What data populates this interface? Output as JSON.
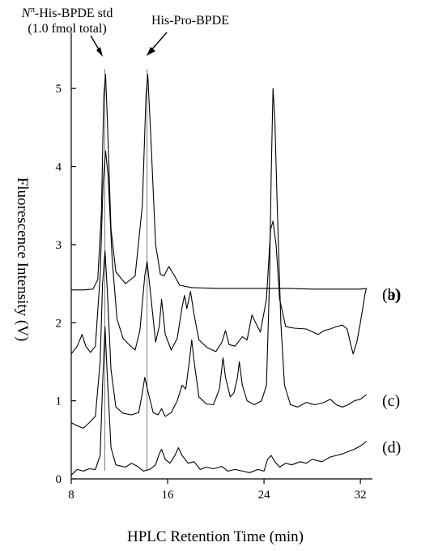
{
  "chart_data": {
    "type": "line",
    "xlabel": "HPLC Retention Time (min)",
    "ylabel": "Fluorescence Intensity (V)",
    "xlim": [
      8,
      33
    ],
    "ylim": [
      0,
      5.5
    ],
    "x_ticks": [
      "8",
      "16",
      "24",
      "32"
    ],
    "y_ticks": [
      "0",
      "1",
      "2",
      "3",
      "4",
      "5"
    ],
    "annotations": [
      {
        "line1_italic": "N",
        "line1_sup": "π",
        "line1_rest": "-His-BPDE std",
        "line2": "(1.0 fmol total)",
        "x": 10.8
      },
      {
        "text": "His-Pro-BPDE",
        "x": 14.3
      }
    ],
    "series": [
      {
        "name": "(a)",
        "points": [
          [
            8.0,
            2.42
          ],
          [
            9.0,
            2.42
          ],
          [
            9.8,
            2.43
          ],
          [
            10.2,
            2.55
          ],
          [
            10.5,
            3.4
          ],
          [
            10.7,
            4.9
          ],
          [
            10.85,
            5.18
          ],
          [
            11.0,
            4.6
          ],
          [
            11.3,
            3.2
          ],
          [
            11.7,
            2.65
          ],
          [
            12.5,
            2.5
          ],
          [
            13.3,
            2.6
          ],
          [
            13.9,
            3.5
          ],
          [
            14.2,
            4.9
          ],
          [
            14.35,
            5.18
          ],
          [
            14.6,
            4.4
          ],
          [
            15.0,
            3.0
          ],
          [
            15.4,
            2.62
          ],
          [
            15.7,
            2.6
          ],
          [
            16.1,
            2.72
          ],
          [
            16.5,
            2.62
          ],
          [
            17.0,
            2.48
          ],
          [
            18.0,
            2.45
          ],
          [
            20.0,
            2.44
          ],
          [
            22.0,
            2.44
          ],
          [
            24.0,
            2.44
          ],
          [
            26.0,
            2.44
          ],
          [
            28.0,
            2.43
          ],
          [
            30.0,
            2.43
          ],
          [
            32.0,
            2.43
          ],
          [
            32.5,
            2.44
          ]
        ]
      },
      {
        "name": "(b)",
        "points": [
          [
            8.0,
            1.6
          ],
          [
            8.5,
            1.7
          ],
          [
            8.9,
            1.85
          ],
          [
            9.2,
            1.7
          ],
          [
            9.6,
            1.62
          ],
          [
            10.0,
            1.7
          ],
          [
            10.4,
            2.6
          ],
          [
            10.65,
            3.8
          ],
          [
            10.85,
            4.2
          ],
          [
            11.05,
            3.9
          ],
          [
            11.4,
            2.8
          ],
          [
            11.8,
            2.05
          ],
          [
            12.3,
            1.8
          ],
          [
            12.8,
            1.72
          ],
          [
            13.3,
            1.65
          ],
          [
            13.7,
            1.9
          ],
          [
            14.1,
            2.6
          ],
          [
            14.3,
            2.78
          ],
          [
            14.6,
            2.35
          ],
          [
            15.0,
            1.75
          ],
          [
            15.3,
            1.95
          ],
          [
            15.5,
            2.3
          ],
          [
            15.8,
            1.85
          ],
          [
            16.3,
            1.65
          ],
          [
            16.8,
            1.8
          ],
          [
            17.2,
            2.2
          ],
          [
            17.4,
            2.35
          ],
          [
            17.6,
            2.18
          ],
          [
            17.9,
            2.4
          ],
          [
            18.2,
            2.1
          ],
          [
            18.6,
            1.78
          ],
          [
            19.3,
            1.68
          ],
          [
            20.0,
            1.63
          ],
          [
            20.5,
            1.75
          ],
          [
            20.8,
            1.9
          ],
          [
            21.1,
            1.72
          ],
          [
            21.6,
            1.7
          ],
          [
            22.2,
            1.82
          ],
          [
            22.6,
            1.78
          ],
          [
            23.0,
            2.1
          ],
          [
            23.3,
            2.0
          ],
          [
            23.7,
            1.88
          ],
          [
            24.2,
            2.3
          ],
          [
            24.55,
            3.2
          ],
          [
            24.75,
            3.3
          ],
          [
            25.0,
            3.0
          ],
          [
            25.3,
            2.3
          ],
          [
            25.8,
            1.95
          ],
          [
            26.5,
            1.93
          ],
          [
            27.5,
            1.92
          ],
          [
            28.5,
            1.85
          ],
          [
            29.0,
            1.9
          ],
          [
            29.5,
            1.92
          ],
          [
            30.0,
            1.95
          ],
          [
            30.5,
            1.97
          ],
          [
            30.9,
            1.92
          ],
          [
            31.2,
            1.72
          ],
          [
            31.4,
            1.6
          ],
          [
            31.7,
            1.75
          ],
          [
            32.0,
            2.0
          ],
          [
            32.4,
            2.38
          ],
          [
            32.5,
            2.44
          ]
        ]
      },
      {
        "name": "(c)",
        "points": [
          [
            8.0,
            0.72
          ],
          [
            8.5,
            0.68
          ],
          [
            9.0,
            0.65
          ],
          [
            9.5,
            0.72
          ],
          [
            10.0,
            0.8
          ],
          [
            10.4,
            1.5
          ],
          [
            10.6,
            2.5
          ],
          [
            10.8,
            2.92
          ],
          [
            11.0,
            2.4
          ],
          [
            11.3,
            1.4
          ],
          [
            11.7,
            0.92
          ],
          [
            12.3,
            0.84
          ],
          [
            13.0,
            0.82
          ],
          [
            13.6,
            0.85
          ],
          [
            13.9,
            1.1
          ],
          [
            14.1,
            1.3
          ],
          [
            14.4,
            1.1
          ],
          [
            14.8,
            0.85
          ],
          [
            15.2,
            0.82
          ],
          [
            15.5,
            0.9
          ],
          [
            15.8,
            0.8
          ],
          [
            16.3,
            0.85
          ],
          [
            16.8,
            1.0
          ],
          [
            17.2,
            1.2
          ],
          [
            17.5,
            1.15
          ],
          [
            17.8,
            1.5
          ],
          [
            18.0,
            1.78
          ],
          [
            18.2,
            1.5
          ],
          [
            18.6,
            1.05
          ],
          [
            19.2,
            0.96
          ],
          [
            19.8,
            0.95
          ],
          [
            20.3,
            1.15
          ],
          [
            20.6,
            1.55
          ],
          [
            20.8,
            1.3
          ],
          [
            21.2,
            1.05
          ],
          [
            21.5,
            1.1
          ],
          [
            21.8,
            1.3
          ],
          [
            21.95,
            1.5
          ],
          [
            22.2,
            1.2
          ],
          [
            22.6,
            1.0
          ],
          [
            23.2,
            0.95
          ],
          [
            23.8,
            1.0
          ],
          [
            24.2,
            1.2
          ],
          [
            24.45,
            2.5
          ],
          [
            24.6,
            3.9
          ],
          [
            24.75,
            5.0
          ],
          [
            24.9,
            4.6
          ],
          [
            25.1,
            3.5
          ],
          [
            25.4,
            2.0
          ],
          [
            25.7,
            1.2
          ],
          [
            26.2,
            0.95
          ],
          [
            26.8,
            0.92
          ],
          [
            27.5,
            0.98
          ],
          [
            28.2,
            0.95
          ],
          [
            29.0,
            0.98
          ],
          [
            29.5,
            1.02
          ],
          [
            30.0,
            0.95
          ],
          [
            30.5,
            0.92
          ],
          [
            31.0,
            0.95
          ],
          [
            31.5,
            1.0
          ],
          [
            32.0,
            1.02
          ],
          [
            32.5,
            1.08
          ]
        ]
      },
      {
        "name": "(d)",
        "points": [
          [
            8.0,
            0.05
          ],
          [
            8.5,
            0.12
          ],
          [
            9.0,
            0.1
          ],
          [
            9.5,
            0.13
          ],
          [
            10.0,
            0.12
          ],
          [
            10.4,
            0.3
          ],
          [
            10.6,
            1.2
          ],
          [
            10.8,
            1.95
          ],
          [
            11.0,
            1.3
          ],
          [
            11.3,
            0.4
          ],
          [
            11.7,
            0.18
          ],
          [
            12.5,
            0.15
          ],
          [
            13.0,
            0.2
          ],
          [
            13.5,
            0.16
          ],
          [
            14.0,
            0.1
          ],
          [
            14.5,
            0.12
          ],
          [
            15.0,
            0.18
          ],
          [
            15.3,
            0.32
          ],
          [
            15.5,
            0.38
          ],
          [
            15.8,
            0.25
          ],
          [
            16.2,
            0.2
          ],
          [
            16.6,
            0.3
          ],
          [
            16.9,
            0.4
          ],
          [
            17.2,
            0.3
          ],
          [
            17.7,
            0.2
          ],
          [
            18.2,
            0.22
          ],
          [
            18.7,
            0.12
          ],
          [
            19.2,
            0.15
          ],
          [
            19.8,
            0.13
          ],
          [
            20.5,
            0.16
          ],
          [
            21.0,
            0.1
          ],
          [
            21.6,
            0.12
          ],
          [
            22.2,
            0.1
          ],
          [
            22.8,
            0.08
          ],
          [
            23.5,
            0.12
          ],
          [
            24.0,
            0.1
          ],
          [
            24.3,
            0.25
          ],
          [
            24.6,
            0.3
          ],
          [
            24.9,
            0.22
          ],
          [
            25.3,
            0.15
          ],
          [
            25.8,
            0.2
          ],
          [
            26.3,
            0.18
          ],
          [
            27.0,
            0.22
          ],
          [
            27.5,
            0.2
          ],
          [
            28.0,
            0.25
          ],
          [
            28.8,
            0.22
          ],
          [
            29.5,
            0.28
          ],
          [
            30.0,
            0.3
          ],
          [
            30.5,
            0.32
          ],
          [
            31.0,
            0.35
          ],
          [
            31.5,
            0.38
          ],
          [
            32.0,
            0.42
          ],
          [
            32.5,
            0.48
          ]
        ]
      }
    ]
  }
}
